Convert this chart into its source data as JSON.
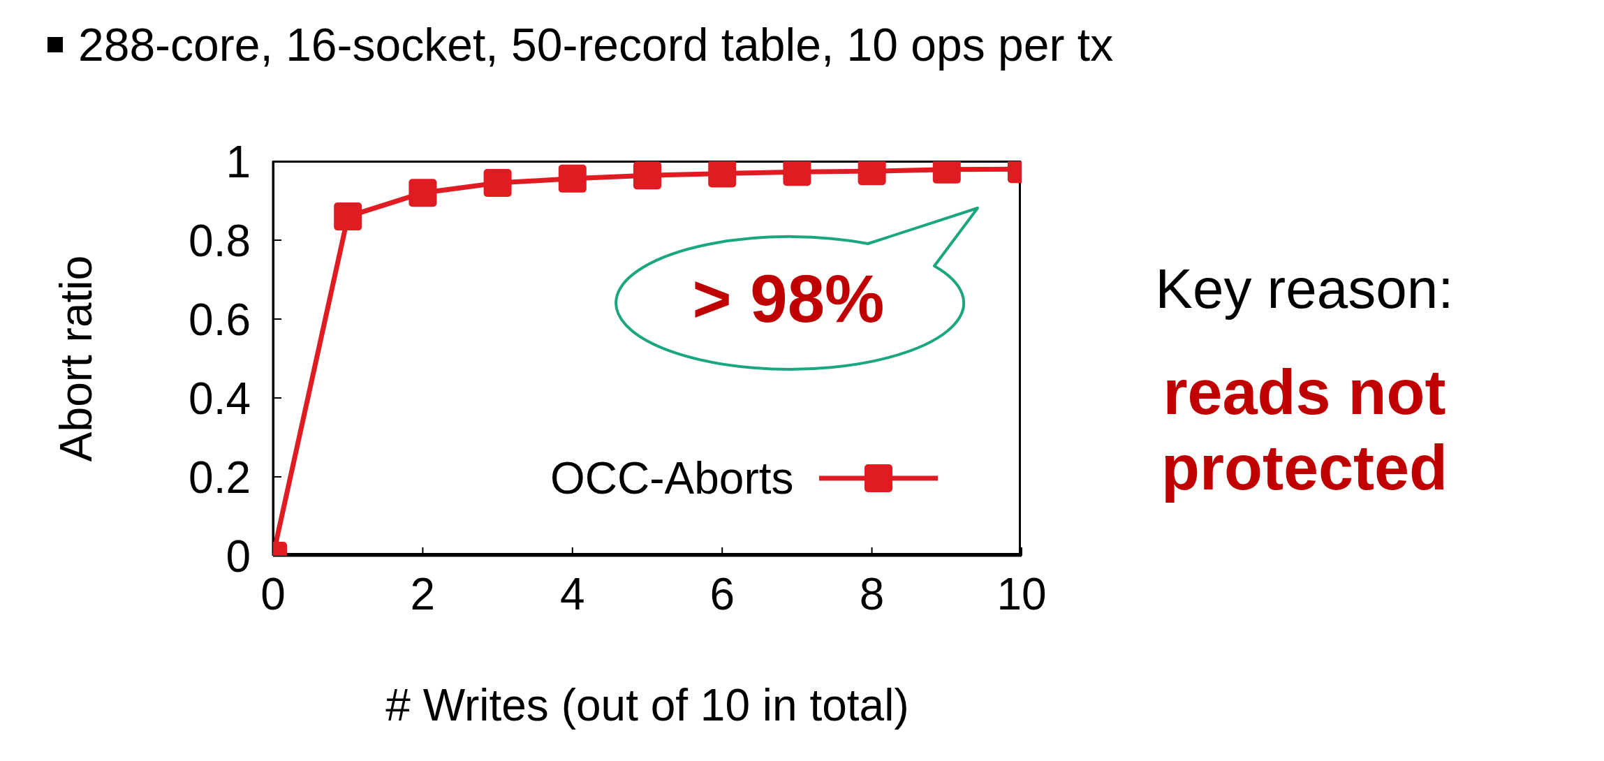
{
  "chart_data": {
    "type": "line",
    "title": "288-core, 16-socket, 50-record table, 10 ops per tx",
    "xlabel": "# Writes (out of 10 in total)",
    "ylabel": "Abort ratio",
    "x": [
      0,
      1,
      2,
      3,
      4,
      5,
      6,
      7,
      8,
      9,
      10
    ],
    "series": [
      {
        "name": "OCC-Aborts",
        "color": "#e01b22",
        "values": [
          0,
          0.86,
          0.92,
          0.945,
          0.956,
          0.964,
          0.969,
          0.973,
          0.975,
          0.979,
          0.98
        ]
      }
    ],
    "xlim": [
      0,
      10
    ],
    "xticks": [
      0,
      2,
      4,
      6,
      8,
      10
    ],
    "ylim": [
      0,
      1
    ],
    "yticks": [
      0,
      0.2,
      0.4,
      0.6,
      0.8,
      1
    ],
    "grid": false,
    "legend": "bottom right",
    "marker": "square",
    "line_style": "solid",
    "annotations": [
      "> 98%",
      "Key reason:",
      "reads not protected"
    ]
  }
}
